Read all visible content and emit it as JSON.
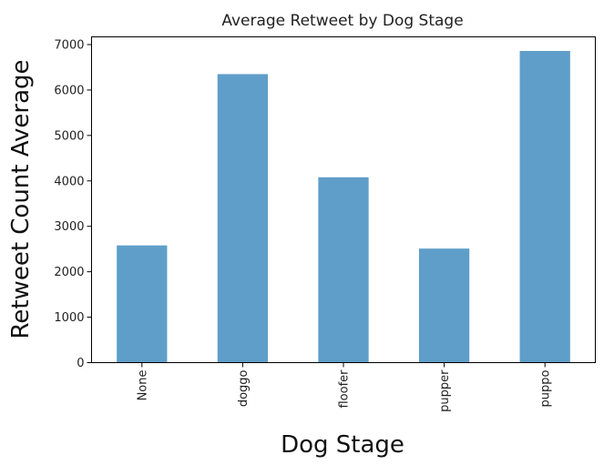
{
  "chart_data": {
    "type": "bar",
    "title": "Average Retweet by Dog Stage",
    "xlabel": "Dog Stage",
    "ylabel": "Retweet Count Average",
    "categories": [
      "None",
      "doggo",
      "floofer",
      "pupper",
      "puppo"
    ],
    "values": [
      2580,
      6350,
      4080,
      2510,
      6860
    ],
    "ylim": [
      0,
      7170
    ],
    "yticks": [
      0,
      1000,
      2000,
      3000,
      4000,
      5000,
      6000,
      7000
    ],
    "ytick_labels": [
      "0",
      "1000",
      "2000",
      "3000",
      "4000",
      "5000",
      "6000",
      "7000"
    ],
    "grid": false,
    "legend": "none",
    "bar_color": "#5f9ec9"
  }
}
